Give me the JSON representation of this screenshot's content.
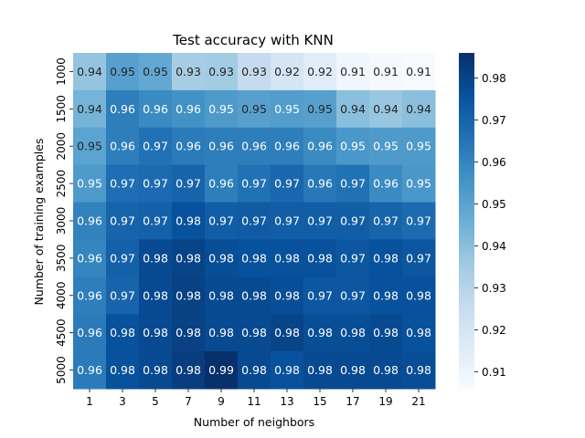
{
  "chart_data": {
    "type": "heatmap",
    "title": "Test accuracy with KNN",
    "xlabel": "Number of neighbors",
    "ylabel": "Number of training examples",
    "x": [
      "1",
      "3",
      "5",
      "7",
      "9",
      "11",
      "13",
      "15",
      "17",
      "19",
      "21"
    ],
    "y": [
      "1000",
      "1500",
      "2000",
      "2500",
      "3000",
      "3500",
      "4000",
      "4500",
      "5000"
    ],
    "values": [
      [
        0.938,
        0.951,
        0.948,
        0.934,
        0.935,
        0.926,
        0.92,
        0.915,
        0.909,
        0.907,
        0.906
      ],
      [
        0.944,
        0.962,
        0.958,
        0.956,
        0.953,
        0.951,
        0.952,
        0.951,
        0.94,
        0.937,
        0.94
      ],
      [
        0.95,
        0.962,
        0.966,
        0.963,
        0.962,
        0.962,
        0.962,
        0.958,
        0.954,
        0.953,
        0.953
      ],
      [
        0.953,
        0.967,
        0.968,
        0.97,
        0.962,
        0.966,
        0.969,
        0.964,
        0.966,
        0.958,
        0.954
      ],
      [
        0.961,
        0.97,
        0.971,
        0.976,
        0.972,
        0.973,
        0.972,
        0.972,
        0.972,
        0.97,
        0.968
      ],
      [
        0.96,
        0.971,
        0.978,
        0.98,
        0.977,
        0.976,
        0.976,
        0.976,
        0.974,
        0.976,
        0.974
      ],
      [
        0.962,
        0.97,
        0.978,
        0.981,
        0.978,
        0.978,
        0.977,
        0.974,
        0.974,
        0.976,
        0.976
      ],
      [
        0.963,
        0.976,
        0.978,
        0.981,
        0.978,
        0.978,
        0.98,
        0.977,
        0.977,
        0.978,
        0.976
      ],
      [
        0.963,
        0.976,
        0.978,
        0.982,
        0.986,
        0.978,
        0.976,
        0.978,
        0.978,
        0.978,
        0.977
      ]
    ],
    "value_labels": [
      [
        "0.94",
        "0.95",
        "0.95",
        "0.93",
        "0.93",
        "0.93",
        "0.92",
        "0.92",
        "0.91",
        "0.91",
        "0.91"
      ],
      [
        "0.94",
        "0.96",
        "0.96",
        "0.96",
        "0.95",
        "0.95",
        "0.95",
        "0.95",
        "0.94",
        "0.94",
        "0.94"
      ],
      [
        "0.95",
        "0.96",
        "0.97",
        "0.96",
        "0.96",
        "0.96",
        "0.96",
        "0.96",
        "0.95",
        "0.95",
        "0.95"
      ],
      [
        "0.95",
        "0.97",
        "0.97",
        "0.97",
        "0.96",
        "0.97",
        "0.97",
        "0.96",
        "0.97",
        "0.96",
        "0.95"
      ],
      [
        "0.96",
        "0.97",
        "0.97",
        "0.98",
        "0.97",
        "0.97",
        "0.97",
        "0.97",
        "0.97",
        "0.97",
        "0.97"
      ],
      [
        "0.96",
        "0.97",
        "0.98",
        "0.98",
        "0.98",
        "0.98",
        "0.98",
        "0.98",
        "0.97",
        "0.98",
        "0.97"
      ],
      [
        "0.96",
        "0.97",
        "0.98",
        "0.98",
        "0.98",
        "0.98",
        "0.98",
        "0.97",
        "0.97",
        "0.98",
        "0.98"
      ],
      [
        "0.96",
        "0.98",
        "0.98",
        "0.98",
        "0.98",
        "0.98",
        "0.98",
        "0.98",
        "0.98",
        "0.98",
        "0.98"
      ],
      [
        "0.96",
        "0.98",
        "0.98",
        "0.98",
        "0.99",
        "0.98",
        "0.98",
        "0.98",
        "0.98",
        "0.98",
        "0.98"
      ]
    ],
    "colorbar": {
      "min": 0.906,
      "max": 0.986,
      "ticks": [
        0.91,
        0.92,
        0.93,
        0.94,
        0.95,
        0.96,
        0.97,
        0.98
      ],
      "tick_labels": [
        "0.91",
        "0.92",
        "0.93",
        "0.94",
        "0.95",
        "0.96",
        "0.97",
        "0.98"
      ],
      "colormap": "Blues"
    },
    "grid": false,
    "legend": "none"
  }
}
